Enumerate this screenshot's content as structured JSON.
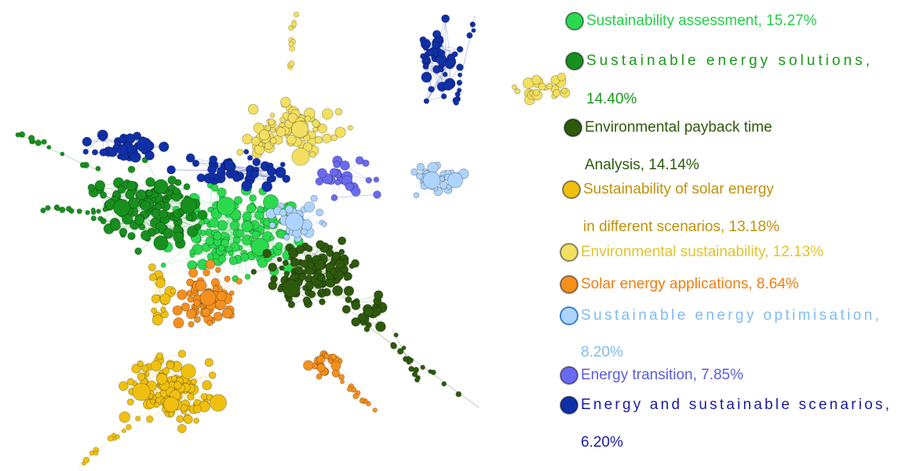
{
  "legend": {
    "items": [
      {
        "lines": [
          "Sustainability assessment, 15.27%"
        ],
        "color": "#2bd94e",
        "text_color": "#22d048"
      },
      {
        "lines": [
          "Sustainable energy solutions,",
          "14.40%"
        ],
        "color": "#17901e",
        "text_color": "#1a9a1a",
        "justify": true
      },
      {
        "lines": [
          "Environmental payback time",
          "Analysis, 14.14%"
        ],
        "color": "#2d5a0c",
        "text_color": "#2d5a0c"
      },
      {
        "lines": [
          "Sustainability of solar energy",
          "in different scenarios, 13.18%"
        ],
        "color": "#f0c010",
        "text_color": "#c0920a"
      },
      {
        "lines": [
          "Environmental sustainability, 12.13%"
        ],
        "color": "#f3e060",
        "text_color": "#e2c42a"
      },
      {
        "lines": [
          "Solar energy applications, 8.64%"
        ],
        "color": "#f5901e",
        "text_color": "#ef7e10"
      },
      {
        "lines": [
          "Sustainable energy optimisation,",
          "8.20%"
        ],
        "color": "#acd4ff",
        "text_color": "#7fbcf5",
        "justify": true
      },
      {
        "lines": [
          "Energy transition, 7.85%"
        ],
        "color": "#6a6af0",
        "text_color": "#5c5ce0"
      },
      {
        "lines": [
          "Energy and sustainable scenarios,",
          "6.20%"
        ],
        "color": "#1030a8",
        "text_color": "#1a1aa0",
        "justify": true
      }
    ]
  }
}
